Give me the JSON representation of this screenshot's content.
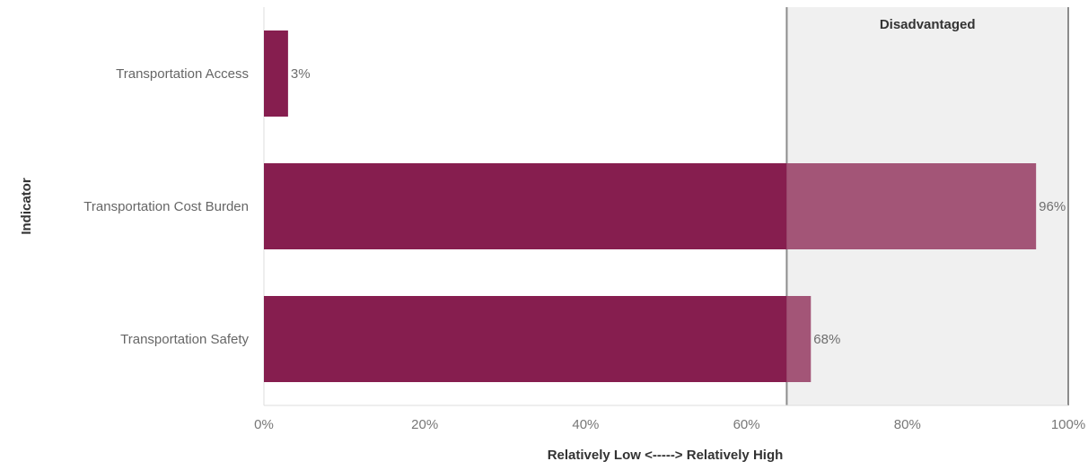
{
  "chart_data": {
    "type": "bar",
    "orientation": "horizontal",
    "title": "",
    "categories": [
      "Transportation Access",
      "Transportation Cost Burden",
      "Transportation Safety"
    ],
    "values": [
      3,
      96,
      68
    ],
    "value_labels": [
      "3%",
      "96%",
      "68%"
    ],
    "xlabel": "Relatively Low <-----> Relatively High",
    "ylabel": "Indicator",
    "xlim": [
      0,
      100
    ],
    "x_ticks": [
      0,
      20,
      40,
      60,
      80,
      100
    ],
    "x_tick_labels": [
      "0%",
      "20%",
      "40%",
      "60%",
      "80%",
      "100%"
    ],
    "grid": false,
    "legend": "none",
    "threshold_region": {
      "label": "Disadvantaged",
      "from": 65,
      "to": 100
    },
    "colors": {
      "bar": "#861e4f",
      "bar_in_region": "#a35577",
      "region_fill": "#f0f0f0",
      "region_border": "#8c8c8c",
      "axis": "#dddddd"
    }
  }
}
